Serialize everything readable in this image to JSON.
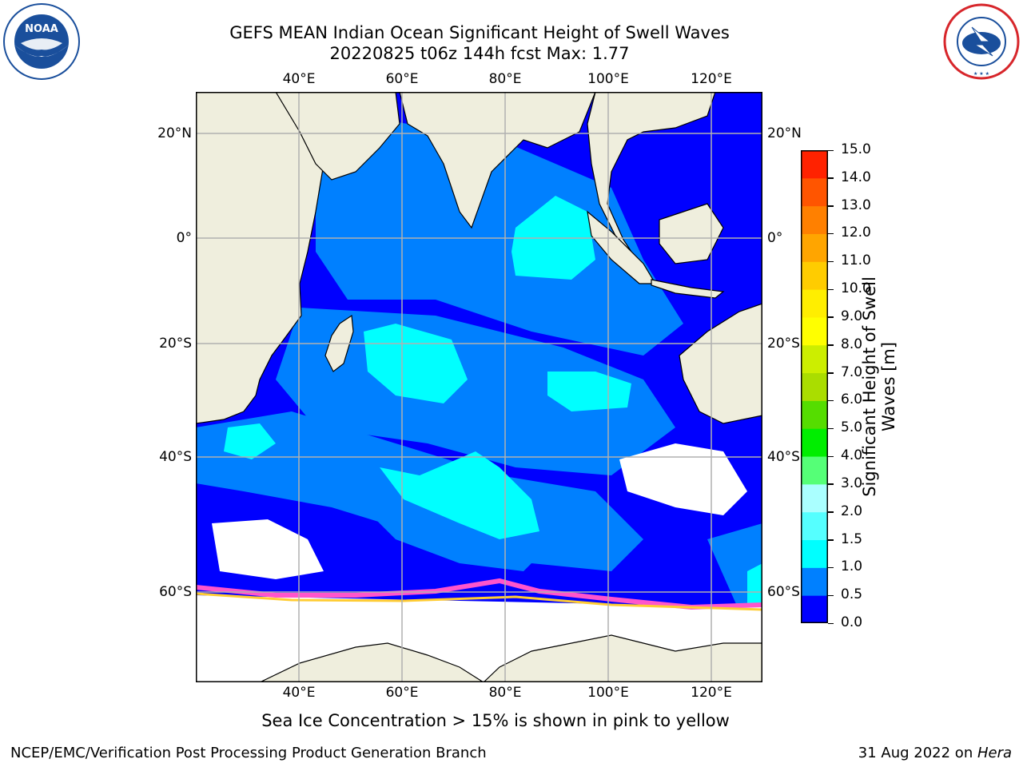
{
  "header": {
    "title_line1": "GEFS MEAN Indian Ocean Significant Height of Swell Waves",
    "title_line2": "20220825 t06z 144h fcst   Max: 1.77"
  },
  "logos": {
    "left": {
      "text": "NOAA",
      "ring_text": "NATIONAL OCEANIC AND ATMOSPHERIC ADMINISTRATION · U.S. DEPARTMENT OF COMMERCE",
      "color": "#1a4f9c"
    },
    "right": {
      "ring_text": "NATIONAL WEATHER SERVICE",
      "color": "#d7262b"
    }
  },
  "map": {
    "lon_ticks": [
      "40°E",
      "60°E",
      "80°E",
      "100°E",
      "120°E"
    ],
    "lat_ticks": [
      "20°N",
      "0°",
      "20°S",
      "40°S",
      "60°S"
    ],
    "colors": {
      "land": "#efeedd",
      "ocean_low": "#0000ff",
      "ocean_mid": "#0080ff",
      "ocean_high": "#00ffff",
      "ice": "#ffffff"
    }
  },
  "colorbar": {
    "label": "Significant Height of Swell Waves [m]",
    "label_line1": "Significant Height of Swell",
    "label_line2": "Waves [m]",
    "ticks": [
      "0.0",
      "0.5",
      "1.0",
      "1.5",
      "2.0",
      "3.0",
      "4.0",
      "5.0",
      "6.0",
      "7.0",
      "8.0",
      "9.0",
      "10.0",
      "11.0",
      "12.0",
      "13.0",
      "14.0",
      "15.0"
    ],
    "colors": [
      "#0000ff",
      "#0080ff",
      "#00ffff",
      "#55ffff",
      "#aaffff",
      "#55ff77",
      "#00ee00",
      "#55dd00",
      "#aadd00",
      "#ccee00",
      "#ffff00",
      "#ffee00",
      "#ffcc00",
      "#ffa500",
      "#ff8000",
      "#ff5500",
      "#ff2200",
      "#ff0000"
    ]
  },
  "footer": {
    "note": "Sea Ice Concentration > 15% is shown in pink to yellow",
    "org": "NCEP/EMC/Verification Post Processing Product Generation Branch",
    "date": "31 Aug 2022 on ",
    "machine": "Hera"
  }
}
